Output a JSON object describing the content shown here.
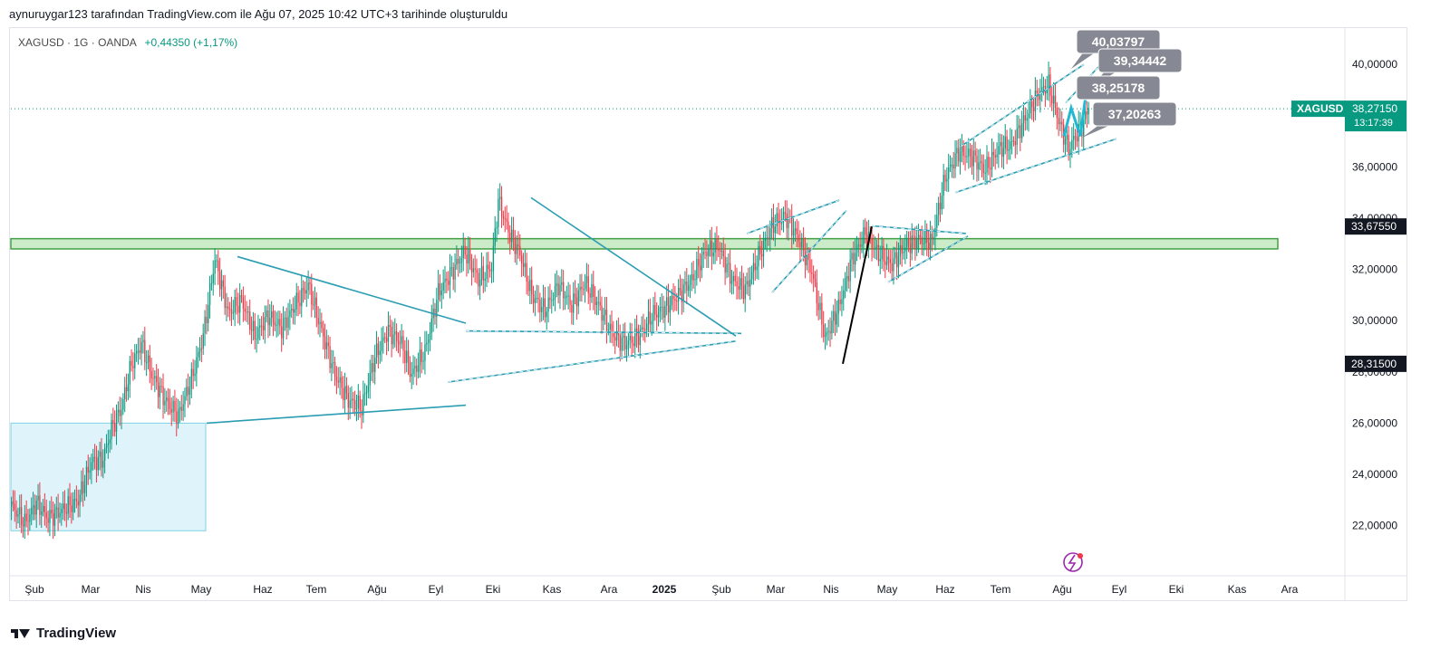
{
  "header": {
    "title": "aynuruygar123 tarafından TradingView.com ile Ağu 07, 2025 10:42 UTC+3 tarihinde oluşturuldu"
  },
  "symbol": {
    "name": "XAGUSD",
    "interval": "1G",
    "source": "OANDA",
    "separator": "·",
    "change": "+0,44350 (+1,17%)"
  },
  "footer": {
    "brand": "TradingView"
  },
  "colors": {
    "up": "#089981",
    "down": "#f23645",
    "trendline": "#2a9db3",
    "zone": "#b6e3b0",
    "zone_border": "#43a047",
    "box": "#dff3fa",
    "box_border": "#7cd3e6",
    "projection": "#22b8d1"
  },
  "chart_data": {
    "type": "candlestick",
    "y_axis": {
      "min": 20,
      "max": 42,
      "ticks": [
        "22,00000",
        "24,00000",
        "26,00000",
        "28,00000",
        "30,00000",
        "32,00000",
        "34,00000",
        "36,00000",
        "38,00000",
        "40,00000"
      ]
    },
    "x_axis": {
      "labels": [
        "Şub",
        "Mar",
        "Nis",
        "May",
        "Haz",
        "Tem",
        "Ağu",
        "Eyl",
        "Eki",
        "Kas",
        "Ara",
        "2025",
        "Şub",
        "Mar",
        "Nis",
        "May",
        "Haz",
        "Tem",
        "Ağu",
        "Eyl",
        "Eki",
        "Kas",
        "Ara"
      ],
      "bold_label": "2025"
    },
    "price_path": [
      [
        0,
        22.8
      ],
      [
        8,
        22.1
      ],
      [
        15,
        22.9
      ],
      [
        22,
        22.3
      ],
      [
        30,
        22.6
      ],
      [
        40,
        23.0
      ],
      [
        48,
        24.5
      ],
      [
        55,
        24.6
      ],
      [
        60,
        25.8
      ],
      [
        66,
        26.6
      ],
      [
        72,
        28.3
      ],
      [
        78,
        29.1
      ],
      [
        84,
        27.9
      ],
      [
        92,
        26.9
      ],
      [
        100,
        26.3
      ],
      [
        108,
        27.7
      ],
      [
        115,
        29.4
      ],
      [
        122,
        32.4
      ],
      [
        130,
        30.3
      ],
      [
        138,
        30.8
      ],
      [
        146,
        29.4
      ],
      [
        154,
        30.2
      ],
      [
        162,
        29.7
      ],
      [
        170,
        30.6
      ],
      [
        178,
        31.4
      ],
      [
        186,
        29.6
      ],
      [
        194,
        27.9
      ],
      [
        202,
        26.9
      ],
      [
        210,
        26.6
      ],
      [
        218,
        28.6
      ],
      [
        226,
        29.6
      ],
      [
        234,
        29.1
      ],
      [
        240,
        27.9
      ],
      [
        248,
        28.8
      ],
      [
        256,
        31.1
      ],
      [
        264,
        31.9
      ],
      [
        272,
        32.7
      ],
      [
        280,
        31.6
      ],
      [
        288,
        32.1
      ],
      [
        292,
        34.7
      ],
      [
        298,
        33.5
      ],
      [
        305,
        32.6
      ],
      [
        312,
        31.0
      ],
      [
        320,
        30.4
      ],
      [
        328,
        31.4
      ],
      [
        336,
        30.6
      ],
      [
        344,
        31.5
      ],
      [
        352,
        30.6
      ],
      [
        360,
        29.5
      ],
      [
        368,
        29.1
      ],
      [
        376,
        29.4
      ],
      [
        384,
        30.2
      ],
      [
        392,
        30.5
      ],
      [
        400,
        31.0
      ],
      [
        408,
        31.6
      ],
      [
        416,
        32.7
      ],
      [
        424,
        32.9
      ],
      [
        432,
        31.6
      ],
      [
        440,
        31.2
      ],
      [
        448,
        32.5
      ],
      [
        456,
        33.7
      ],
      [
        464,
        34.1
      ],
      [
        472,
        33.2
      ],
      [
        480,
        31.9
      ],
      [
        488,
        29.3
      ],
      [
        496,
        30.5
      ],
      [
        504,
        32.4
      ],
      [
        512,
        33.4
      ],
      [
        520,
        32.6
      ],
      [
        528,
        32.2
      ],
      [
        536,
        32.9
      ],
      [
        544,
        33.2
      ],
      [
        552,
        33.1
      ],
      [
        560,
        35.6
      ],
      [
        568,
        36.6
      ],
      [
        576,
        36.4
      ],
      [
        584,
        35.9
      ],
      [
        592,
        36.7
      ],
      [
        600,
        36.9
      ],
      [
        608,
        37.9
      ],
      [
        616,
        38.9
      ],
      [
        622,
        39.2
      ],
      [
        628,
        37.8
      ],
      [
        634,
        36.7
      ],
      [
        638,
        37.2
      ],
      [
        642,
        37.6
      ],
      [
        646,
        38.3
      ]
    ],
    "projection": [
      37.2,
      38.3,
      37.2,
      39.3
    ],
    "current_price": {
      "label": "XAGUSD",
      "value": "38,27150",
      "countdown": "13:17:39"
    },
    "markers": [
      {
        "value": "33,67550",
        "price": 33.6755
      },
      {
        "value": "28,31500",
        "price": 28.315
      }
    ],
    "price_labels": [
      "40,03797",
      "39,34442",
      "38,25178",
      "37,20263"
    ],
    "support_zone": {
      "low": 32.8,
      "high": 33.2
    },
    "demand_box": {
      "low": 21.8,
      "high": 26.0
    }
  }
}
